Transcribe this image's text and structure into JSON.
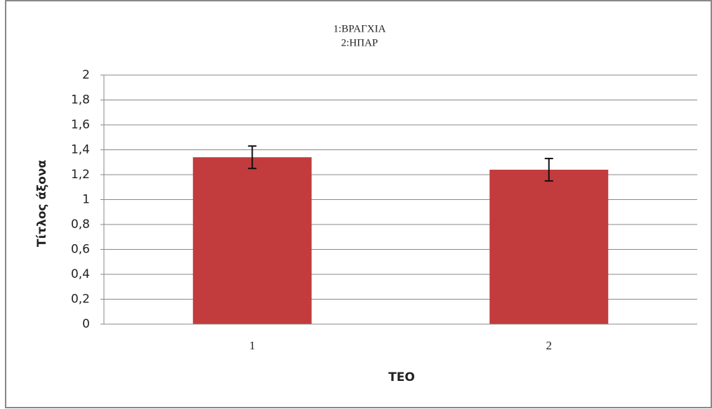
{
  "chart_data": {
    "type": "bar",
    "title": "1:ΒΡΑΓΧΙΑ",
    "subtitle": "2:ΗΠΑΡ",
    "x_label": "ΤΕΟ",
    "y_label": "Τίτλος άξονα",
    "categories": [
      "1",
      "2"
    ],
    "values": [
      1.34,
      1.24
    ],
    "errors": [
      0.09,
      0.09
    ],
    "color": "#c23b3d",
    "ylim": [
      0,
      2
    ],
    "yticks": [
      0,
      {
        "value": 0.2,
        "label": "0,2"
      },
      {
        "value": 0.4,
        "label": "0,4"
      },
      {
        "value": 0.6,
        "label": "0,6"
      },
      {
        "value": 0.8,
        "label": "0,8"
      },
      1,
      {
        "value": 1.2,
        "label": "1,2"
      },
      {
        "value": 1.4,
        "label": "1,4"
      },
      {
        "value": 1.6,
        "label": "1,6"
      },
      {
        "value": 1.8,
        "label": "1,8"
      },
      2
    ],
    "grid": true
  }
}
